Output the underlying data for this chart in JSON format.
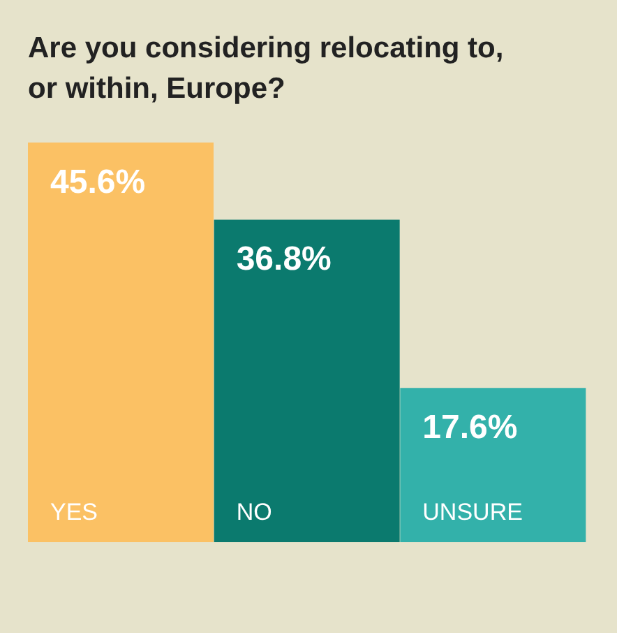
{
  "chart_data": {
    "type": "bar",
    "title": "Are you considering relocating to, or within, Europe?",
    "categories": [
      "YES",
      "NO",
      "UNSURE"
    ],
    "values": [
      45.6,
      36.8,
      17.6
    ],
    "value_labels": [
      "45.6%",
      "36.8%",
      "17.6%"
    ],
    "colors": [
      "#fbc164",
      "#0b7a6e",
      "#33b1aa"
    ]
  }
}
